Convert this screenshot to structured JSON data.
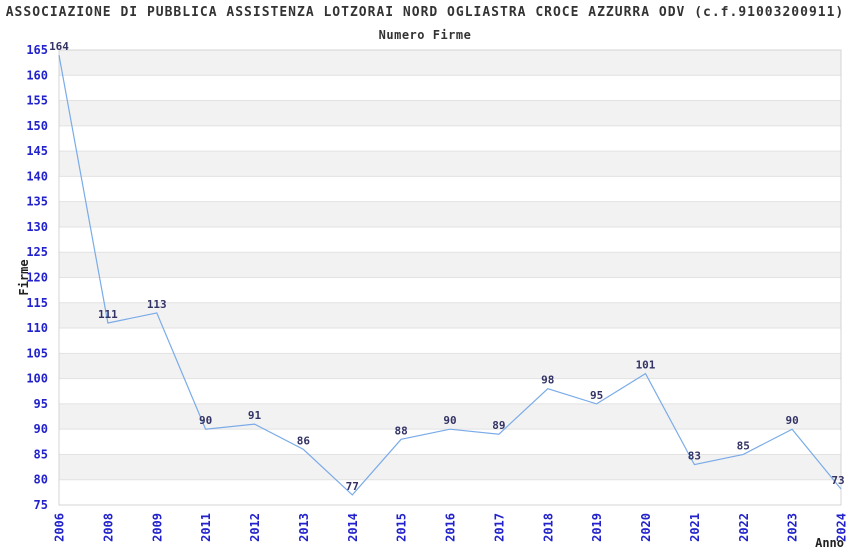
{
  "header": {
    "title": "ASSOCIAZIONE DI PUBBLICA ASSISTENZA LOTZORAI NORD OGLIASTRA CROCE AZZURRA ODV (c.f.91003200911)",
    "subtitle": "Numero Firme"
  },
  "chart_data": {
    "type": "line",
    "title": "ASSOCIAZIONE DI PUBBLICA ASSISTENZA LOTZORAI NORD OGLIASTRA CROCE AZZURRA ODV (c.f.91003200911)",
    "subtitle": "Numero Firme",
    "xlabel": "Anno",
    "ylabel": "Firme",
    "categories": [
      "2006",
      "2008",
      "2009",
      "2011",
      "2012",
      "2013",
      "2014",
      "2015",
      "2016",
      "2017",
      "2018",
      "2019",
      "2020",
      "2021",
      "2022",
      "2023",
      "2024"
    ],
    "values": [
      164,
      111,
      113,
      90,
      91,
      86,
      77,
      88,
      90,
      89,
      98,
      95,
      101,
      83,
      85,
      90,
      73
    ],
    "ylim": [
      75,
      165
    ],
    "ytick_step": 5,
    "grid": true,
    "banded_background": true,
    "legend_position": "none",
    "data_labels_shown": true
  },
  "colors": {
    "line": "#7aabe8",
    "tick_label": "#2222cc",
    "data_label": "#333366",
    "band_fill": "#f2f2f2",
    "gridline": "#e2e2e2",
    "plot_border": "#d4d4d4",
    "background": "#ffffff",
    "title_text": "#333333"
  }
}
